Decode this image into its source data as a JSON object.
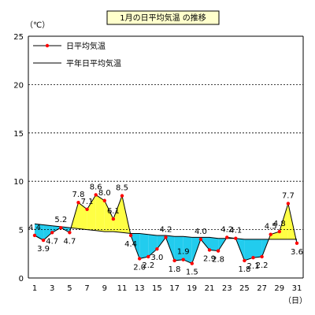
{
  "chart_data": {
    "type": "line",
    "title": "1月の日平均気温 の推移",
    "y_unit": "（℃）",
    "x_unit": "（日）",
    "ylim": [
      0,
      25
    ],
    "y_ticks": [
      0,
      5,
      10,
      15,
      20,
      25
    ],
    "x_ticks": [
      1,
      3,
      5,
      7,
      9,
      11,
      13,
      15,
      17,
      19,
      21,
      23,
      25,
      27,
      29,
      31
    ],
    "grid": "horizontal-dashed",
    "legend_position": "top-left",
    "fill_above_normal": "#ffff44",
    "fill_below_normal": "#22ccee",
    "x": [
      1,
      2,
      3,
      4,
      5,
      6,
      7,
      8,
      9,
      10,
      11,
      12,
      13,
      14,
      15,
      16,
      17,
      18,
      19,
      20,
      21,
      22,
      23,
      24,
      25,
      26,
      27,
      28,
      29,
      30,
      31
    ],
    "series": [
      {
        "name": "日平均気温",
        "color": "#ff0000",
        "line_color": "#000000",
        "values": [
          4.4,
          3.9,
          4.7,
          5.2,
          4.7,
          7.8,
          7.1,
          8.6,
          8.0,
          6.1,
          8.5,
          4.4,
          2.0,
          2.2,
          3.0,
          4.2,
          1.8,
          1.9,
          1.5,
          4.0,
          2.9,
          2.8,
          4.2,
          4.1,
          1.8,
          2.1,
          2.2,
          4.5,
          4.8,
          7.7,
          3.6
        ]
      },
      {
        "name": "平年日平均気温",
        "color": "#000000",
        "values": [
          5.6,
          5.5,
          5.4,
          5.3,
          5.2,
          5.1,
          5.0,
          4.9,
          4.8,
          4.8,
          4.7,
          4.6,
          4.6,
          4.5,
          4.4,
          4.4,
          4.3,
          4.3,
          4.2,
          4.2,
          4.2,
          4.1,
          4.1,
          4.1,
          4.0,
          4.0,
          4.0,
          4.0,
          4.0,
          4.0,
          4.0
        ]
      }
    ]
  }
}
